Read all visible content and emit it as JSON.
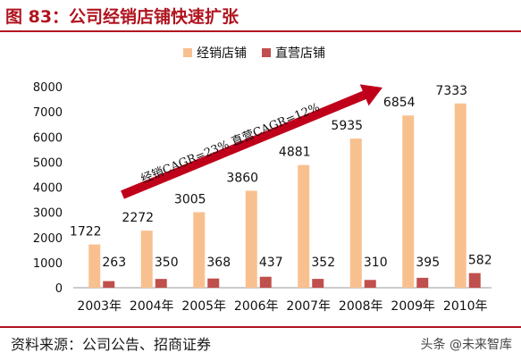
{
  "title": "图 83：公司经销店铺快速扩张",
  "source": "资料来源：公司公告、招商证券",
  "watermark": "头条 @未来智库",
  "chart_data": {
    "type": "bar",
    "categories": [
      "2003年",
      "2004年",
      "2005年",
      "2006年",
      "2007年",
      "2008年",
      "2009年",
      "2010年"
    ],
    "series": [
      {
        "name": "经销店铺",
        "values": [
          1722,
          2272,
          3005,
          3860,
          4881,
          5935,
          6854,
          7333
        ],
        "color": "#f9c08f"
      },
      {
        "name": "直营店铺",
        "values": [
          263,
          350,
          368,
          437,
          352,
          310,
          395,
          582
        ],
        "color": "#c0504d"
      }
    ],
    "yticks": [
      0,
      1000,
      2000,
      3000,
      4000,
      5000,
      6000,
      7000,
      8000
    ],
    "ylim": [
      0,
      8000
    ],
    "legend": "top",
    "annotation": "经销CAGR=23% 直营CAGR=12%",
    "arrow_color": "#c0001a"
  }
}
